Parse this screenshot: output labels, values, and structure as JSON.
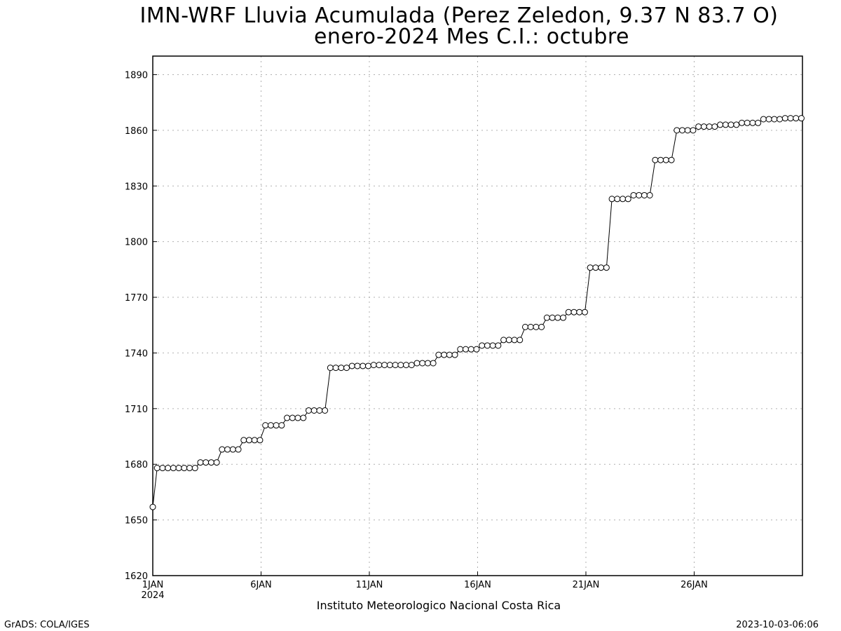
{
  "title_line1": "IMN-WRF  Lluvia Acumulada  (Perez Zeledon, 9.37  N 83.7  O)",
  "title_line2": "enero-2024 Mes C.I.: octubre",
  "footer_left": "GrADS: COLA/IGES",
  "footer_right": "2023-10-03-06:06",
  "colors": {
    "line": "#000000",
    "marker_fill": "#ffffff",
    "grid": "#b0b0b0",
    "axis": "#000000"
  },
  "chart_data": {
    "type": "line",
    "title": "IMN-WRF  Lluvia Acumulada  (Perez Zeledon, 9.37  N 83.7  O)",
    "subtitle": "enero-2024 Mes C.I.: octubre",
    "xlabel": "Instituto Meteorologico Nacional Costa Rica",
    "ylabel": "",
    "x_unit": "day of January 2024 (6-hourly)",
    "xlim": [
      1,
      31
    ],
    "ylim": [
      1620,
      1900
    ],
    "grid": true,
    "marker": "open-circle",
    "yticks": [
      1620,
      1650,
      1680,
      1710,
      1740,
      1770,
      1800,
      1830,
      1860,
      1890
    ],
    "xticks": [
      {
        "value": 1,
        "label": "1JAN",
        "sublabel": "2024"
      },
      {
        "value": 6,
        "label": "6JAN",
        "sublabel": ""
      },
      {
        "value": 11,
        "label": "11JAN",
        "sublabel": ""
      },
      {
        "value": 16,
        "label": "16JAN",
        "sublabel": ""
      },
      {
        "value": 21,
        "label": "21JAN",
        "sublabel": ""
      },
      {
        "value": 26,
        "label": "26JAN",
        "sublabel": ""
      }
    ],
    "series": [
      {
        "x": [
          1.0,
          1.2,
          1.45,
          1.7,
          1.95,
          2.2,
          2.45,
          2.7,
          2.95,
          3.2,
          3.45,
          3.7,
          3.95,
          4.2,
          4.45,
          4.7,
          4.95,
          5.2,
          5.45,
          5.7,
          5.95,
          6.2,
          6.45,
          6.7,
          6.95,
          7.2,
          7.45,
          7.7,
          7.95,
          8.2,
          8.45,
          8.7,
          8.95,
          9.2,
          9.45,
          9.7,
          9.95,
          10.2,
          10.45,
          10.7,
          10.95,
          11.2,
          11.45,
          11.7,
          11.95,
          12.2,
          12.45,
          12.7,
          12.95,
          13.2,
          13.45,
          13.7,
          13.95,
          14.2,
          14.45,
          14.7,
          14.95,
          15.2,
          15.45,
          15.7,
          15.95,
          16.2,
          16.45,
          16.7,
          16.95,
          17.2,
          17.45,
          17.7,
          17.95,
          18.2,
          18.45,
          18.7,
          18.95,
          19.2,
          19.45,
          19.7,
          19.95,
          20.2,
          20.45,
          20.7,
          20.95,
          21.2,
          21.45,
          21.7,
          21.95,
          22.2,
          22.45,
          22.7,
          22.95,
          23.2,
          23.45,
          23.7,
          23.95,
          24.2,
          24.45,
          24.7,
          24.95,
          25.2,
          25.45,
          25.7,
          25.95,
          26.2,
          26.45,
          26.7,
          26.95,
          27.2,
          27.45,
          27.7,
          27.95,
          28.2,
          28.45,
          28.7,
          28.95,
          29.2,
          29.45,
          29.7,
          29.95,
          30.2,
          30.45,
          30.7,
          30.95
        ],
        "values": [
          1657,
          1678,
          1678,
          1678,
          1678,
          1678,
          1678,
          1678,
          1678,
          1681,
          1681,
          1681,
          1681,
          1688,
          1688,
          1688,
          1688,
          1693,
          1693,
          1693,
          1693,
          1701,
          1701,
          1701,
          1701,
          1705,
          1705,
          1705,
          1705,
          1709,
          1709,
          1709,
          1709,
          1732,
          1732,
          1732,
          1732,
          1733,
          1733,
          1733,
          1733,
          1733.5,
          1733.5,
          1733.5,
          1733.5,
          1733.5,
          1733.5,
          1733.5,
          1733.5,
          1734.5,
          1734.5,
          1734.5,
          1734.5,
          1739,
          1739,
          1739,
          1739,
          1742,
          1742,
          1742,
          1742,
          1744,
          1744,
          1744,
          1744,
          1747,
          1747,
          1747,
          1747,
          1754,
          1754,
          1754,
          1754,
          1759,
          1759,
          1759,
          1759,
          1762,
          1762,
          1762,
          1762,
          1786,
          1786,
          1786,
          1786,
          1823,
          1823,
          1823,
          1823,
          1825,
          1825,
          1825,
          1825,
          1844,
          1844,
          1844,
          1844,
          1860,
          1860,
          1860,
          1860,
          1862,
          1862,
          1862,
          1862,
          1863,
          1863,
          1863,
          1863,
          1864,
          1864,
          1864,
          1864,
          1866,
          1866,
          1866,
          1866,
          1866.5,
          1866.5,
          1866.5,
          1866.5
        ]
      }
    ]
  }
}
